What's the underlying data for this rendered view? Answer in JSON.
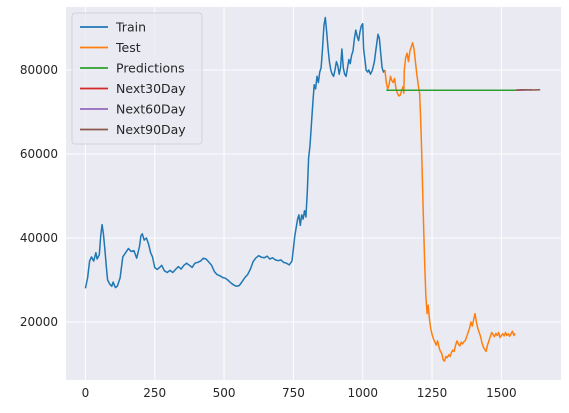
{
  "chart_data": {
    "type": "line",
    "title": "",
    "xlabel": "",
    "ylabel": "",
    "xlim": [
      -70,
      1715
    ],
    "ylim": [
      6200,
      95000
    ],
    "xticks": [
      0,
      250,
      500,
      750,
      1000,
      1250,
      1500
    ],
    "yticks": [
      20000,
      40000,
      60000,
      80000
    ],
    "grid": true,
    "legend_position": "top-left",
    "series": [
      {
        "name": "Train",
        "color": "#1f77b4",
        "points": [
          [
            0,
            28000
          ],
          [
            8,
            30500
          ],
          [
            15,
            34500
          ],
          [
            22,
            35500
          ],
          [
            30,
            34500
          ],
          [
            38,
            36500
          ],
          [
            42,
            35000
          ],
          [
            50,
            36000
          ],
          [
            55,
            40500
          ],
          [
            60,
            43200
          ],
          [
            65,
            41000
          ],
          [
            70,
            37500
          ],
          [
            75,
            33500
          ],
          [
            80,
            30000
          ],
          [
            88,
            29000
          ],
          [
            95,
            28500
          ],
          [
            100,
            29500
          ],
          [
            108,
            28200
          ],
          [
            115,
            28500
          ],
          [
            125,
            30500
          ],
          [
            135,
            35500
          ],
          [
            145,
            36500
          ],
          [
            155,
            37500
          ],
          [
            165,
            36800
          ],
          [
            175,
            37000
          ],
          [
            185,
            35200
          ],
          [
            195,
            38000
          ],
          [
            200,
            40500
          ],
          [
            205,
            41000
          ],
          [
            212,
            39500
          ],
          [
            220,
            40000
          ],
          [
            228,
            38500
          ],
          [
            235,
            36500
          ],
          [
            242,
            35500
          ],
          [
            250,
            33000
          ],
          [
            258,
            32500
          ],
          [
            268,
            33000
          ],
          [
            275,
            33500
          ],
          [
            285,
            32200
          ],
          [
            295,
            31800
          ],
          [
            305,
            32300
          ],
          [
            315,
            31800
          ],
          [
            325,
            32500
          ],
          [
            335,
            33200
          ],
          [
            345,
            32600
          ],
          [
            355,
            33500
          ],
          [
            365,
            34000
          ],
          [
            375,
            33500
          ],
          [
            385,
            33000
          ],
          [
            395,
            34000
          ],
          [
            405,
            34200
          ],
          [
            415,
            34500
          ],
          [
            425,
            35200
          ],
          [
            435,
            35000
          ],
          [
            445,
            34300
          ],
          [
            455,
            33500
          ],
          [
            465,
            32000
          ],
          [
            475,
            31300
          ],
          [
            485,
            31000
          ],
          [
            495,
            30600
          ],
          [
            505,
            30400
          ],
          [
            515,
            29900
          ],
          [
            525,
            29300
          ],
          [
            535,
            28800
          ],
          [
            545,
            28500
          ],
          [
            555,
            28700
          ],
          [
            565,
            29600
          ],
          [
            575,
            30600
          ],
          [
            585,
            31300
          ],
          [
            595,
            32600
          ],
          [
            605,
            34400
          ],
          [
            615,
            35300
          ],
          [
            625,
            35800
          ],
          [
            635,
            35400
          ],
          [
            645,
            35300
          ],
          [
            655,
            35700
          ],
          [
            665,
            35000
          ],
          [
            675,
            35300
          ],
          [
            685,
            34800
          ],
          [
            695,
            34600
          ],
          [
            705,
            34800
          ],
          [
            715,
            34200
          ],
          [
            725,
            34000
          ],
          [
            735,
            33600
          ],
          [
            745,
            34500
          ],
          [
            750,
            37500
          ],
          [
            755,
            40500
          ],
          [
            760,
            42500
          ],
          [
            765,
            44500
          ],
          [
            770,
            45500
          ],
          [
            775,
            43000
          ],
          [
            780,
            45500
          ],
          [
            785,
            44500
          ],
          [
            790,
            46500
          ],
          [
            795,
            45000
          ],
          [
            800,
            51000
          ],
          [
            805,
            59000
          ],
          [
            810,
            62000
          ],
          [
            815,
            67000
          ],
          [
            820,
            72000
          ],
          [
            825,
            76500
          ],
          [
            830,
            75500
          ],
          [
            835,
            78500
          ],
          [
            840,
            77000
          ],
          [
            845,
            79500
          ],
          [
            850,
            80500
          ],
          [
            855,
            85000
          ],
          [
            860,
            90500
          ],
          [
            865,
            92500
          ],
          [
            870,
            89000
          ],
          [
            875,
            85000
          ],
          [
            880,
            82000
          ],
          [
            885,
            80000
          ],
          [
            890,
            79000
          ],
          [
            895,
            78500
          ],
          [
            900,
            80000
          ],
          [
            905,
            82000
          ],
          [
            910,
            81000
          ],
          [
            915,
            79000
          ],
          [
            920,
            80500
          ],
          [
            925,
            85000
          ],
          [
            930,
            80500
          ],
          [
            935,
            79000
          ],
          [
            940,
            78500
          ],
          [
            945,
            80500
          ],
          [
            950,
            82500
          ],
          [
            955,
            81500
          ],
          [
            960,
            83500
          ],
          [
            965,
            84500
          ],
          [
            970,
            87500
          ],
          [
            975,
            89500
          ],
          [
            980,
            88000
          ],
          [
            985,
            87000
          ],
          [
            990,
            89000
          ],
          [
            995,
            90500
          ],
          [
            1000,
            91000
          ],
          [
            1003,
            85000
          ],
          [
            1008,
            82500
          ],
          [
            1012,
            80000
          ],
          [
            1018,
            79500
          ],
          [
            1022,
            80000
          ],
          [
            1028,
            79000
          ],
          [
            1035,
            80000
          ],
          [
            1042,
            82000
          ],
          [
            1048,
            85000
          ],
          [
            1055,
            88500
          ],
          [
            1060,
            87500
          ],
          [
            1065,
            84000
          ],
          [
            1070,
            80500
          ],
          [
            1075,
            79500
          ],
          [
            1080,
            80000
          ]
        ]
      },
      {
        "name": "Test",
        "color": "#ff7f0e",
        "points": [
          [
            1080,
            80000
          ],
          [
            1085,
            77000
          ],
          [
            1090,
            75500
          ],
          [
            1095,
            76500
          ],
          [
            1100,
            78500
          ],
          [
            1105,
            77500
          ],
          [
            1110,
            77000
          ],
          [
            1115,
            78000
          ],
          [
            1120,
            75500
          ],
          [
            1125,
            74500
          ],
          [
            1130,
            73800
          ],
          [
            1135,
            74000
          ],
          [
            1140,
            75000
          ],
          [
            1145,
            76000
          ],
          [
            1148,
            74500
          ],
          [
            1150,
            80000
          ],
          [
            1155,
            83000
          ],
          [
            1160,
            84000
          ],
          [
            1165,
            82000
          ],
          [
            1170,
            84500
          ],
          [
            1175,
            85500
          ],
          [
            1180,
            86500
          ],
          [
            1185,
            85000
          ],
          [
            1190,
            82000
          ],
          [
            1195,
            79000
          ],
          [
            1200,
            76500
          ],
          [
            1205,
            74500
          ],
          [
            1208,
            70000
          ],
          [
            1212,
            62000
          ],
          [
            1216,
            52000
          ],
          [
            1220,
            42000
          ],
          [
            1224,
            33000
          ],
          [
            1228,
            26000
          ],
          [
            1232,
            22000
          ],
          [
            1236,
            24000
          ],
          [
            1240,
            21000
          ],
          [
            1245,
            18500
          ],
          [
            1250,
            17000
          ],
          [
            1255,
            16000
          ],
          [
            1260,
            15300
          ],
          [
            1265,
            14500
          ],
          [
            1270,
            15500
          ],
          [
            1275,
            14000
          ],
          [
            1280,
            13000
          ],
          [
            1285,
            12500
          ],
          [
            1290,
            11000
          ],
          [
            1295,
            10700
          ],
          [
            1300,
            11800
          ],
          [
            1305,
            11500
          ],
          [
            1310,
            12200
          ],
          [
            1315,
            11800
          ],
          [
            1320,
            12800
          ],
          [
            1325,
            13300
          ],
          [
            1330,
            13000
          ],
          [
            1335,
            14500
          ],
          [
            1340,
            15500
          ],
          [
            1345,
            14800
          ],
          [
            1350,
            14300
          ],
          [
            1355,
            15200
          ],
          [
            1360,
            14800
          ],
          [
            1365,
            15300
          ],
          [
            1370,
            15600
          ],
          [
            1375,
            16500
          ],
          [
            1380,
            17500
          ],
          [
            1385,
            18500
          ],
          [
            1390,
            20000
          ],
          [
            1395,
            19000
          ],
          [
            1400,
            20500
          ],
          [
            1405,
            22000
          ],
          [
            1410,
            20000
          ],
          [
            1415,
            18500
          ],
          [
            1420,
            17500
          ],
          [
            1425,
            16500
          ],
          [
            1430,
            15000
          ],
          [
            1435,
            14000
          ],
          [
            1440,
            13500
          ],
          [
            1445,
            13000
          ],
          [
            1450,
            14500
          ],
          [
            1455,
            15500
          ],
          [
            1460,
            16500
          ],
          [
            1465,
            17500
          ],
          [
            1470,
            17000
          ],
          [
            1475,
            16500
          ],
          [
            1480,
            17300
          ],
          [
            1485,
            16800
          ],
          [
            1490,
            17500
          ],
          [
            1495,
            16300
          ],
          [
            1500,
            16800
          ],
          [
            1505,
            17200
          ],
          [
            1510,
            16700
          ],
          [
            1515,
            17500
          ],
          [
            1520,
            16800
          ],
          [
            1525,
            17200
          ],
          [
            1530,
            16600
          ],
          [
            1535,
            17200
          ],
          [
            1540,
            17800
          ],
          [
            1545,
            16800
          ],
          [
            1550,
            17300
          ]
        ]
      },
      {
        "name": "Predictions",
        "color": "#2ca02c",
        "points": [
          [
            1085,
            75200
          ],
          [
            1550,
            75200
          ]
        ]
      },
      {
        "name": "Next30Day",
        "color": "#d62728",
        "points": [
          [
            1550,
            75200
          ],
          [
            1580,
            75300
          ]
        ]
      },
      {
        "name": "Next60Day",
        "color": "#9467bd",
        "points": [
          [
            1550,
            75200
          ],
          [
            1610,
            75300
          ]
        ]
      },
      {
        "name": "Next90Day",
        "color": "#8c564b",
        "points": [
          [
            1550,
            75200
          ],
          [
            1580,
            75300
          ],
          [
            1610,
            75250
          ],
          [
            1640,
            75300
          ]
        ]
      }
    ]
  }
}
